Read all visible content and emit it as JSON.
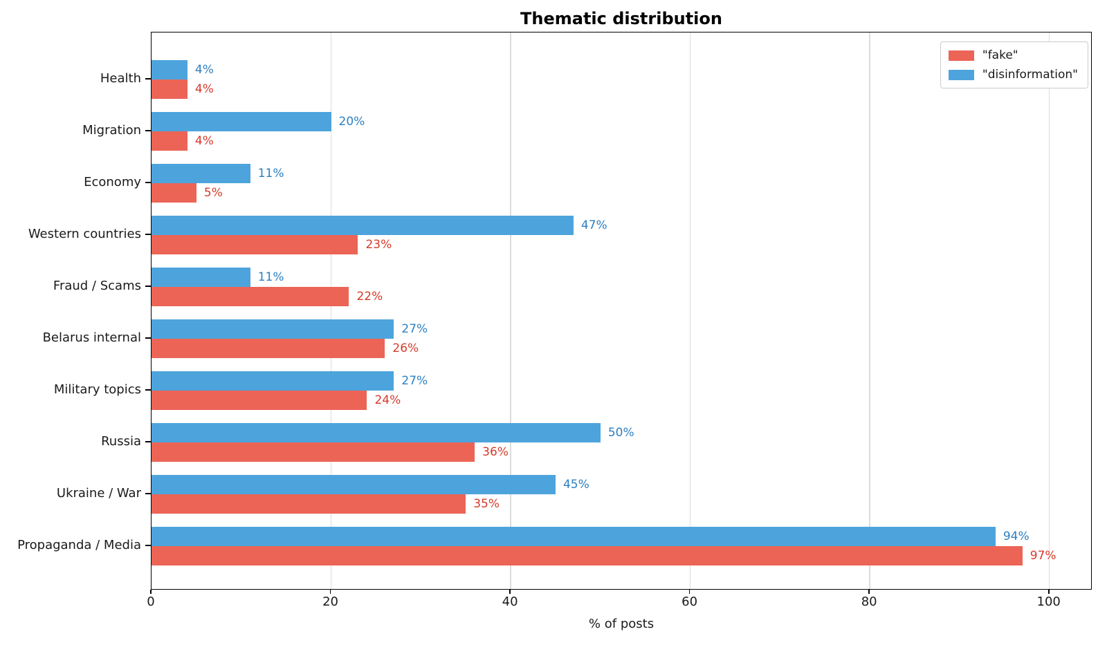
{
  "title": "Thematic distribution",
  "xlabel": "% of posts",
  "chart_data": {
    "type": "bar",
    "orientation": "horizontal",
    "title": "Thematic distribution",
    "xlabel": "% of posts",
    "value_label_suffix": "%",
    "categories": [
      "Health",
      "Migration",
      "Economy",
      "Western countries",
      "Fraud / Scams",
      "Belarus internal",
      "Military topics",
      "Russia",
      "Ukraine / War",
      "Propaganda / Media"
    ],
    "series": [
      {
        "key": "fake",
        "name": "\"fake\"",
        "color": "#ec6456",
        "label_color": "#d63a2a",
        "values": [
          4,
          4,
          5,
          23,
          22,
          26,
          24,
          36,
          35,
          97
        ]
      },
      {
        "key": "disinformation",
        "name": "\"disinformation\"",
        "color": "#4da4dc",
        "label_color": "#2c7fc2",
        "values": [
          4,
          20,
          11,
          47,
          11,
          27,
          27,
          50,
          45,
          94
        ]
      }
    ],
    "group_order_top_to_bottom": [
      "disinformation",
      "fake"
    ],
    "xticks": [
      0,
      20,
      40,
      60,
      80,
      100
    ],
    "xlim": [
      0,
      104.8
    ],
    "grid": true,
    "grid_color": "#dcdcdc",
    "legend_position": "upper right",
    "spine_color": "#000000"
  }
}
